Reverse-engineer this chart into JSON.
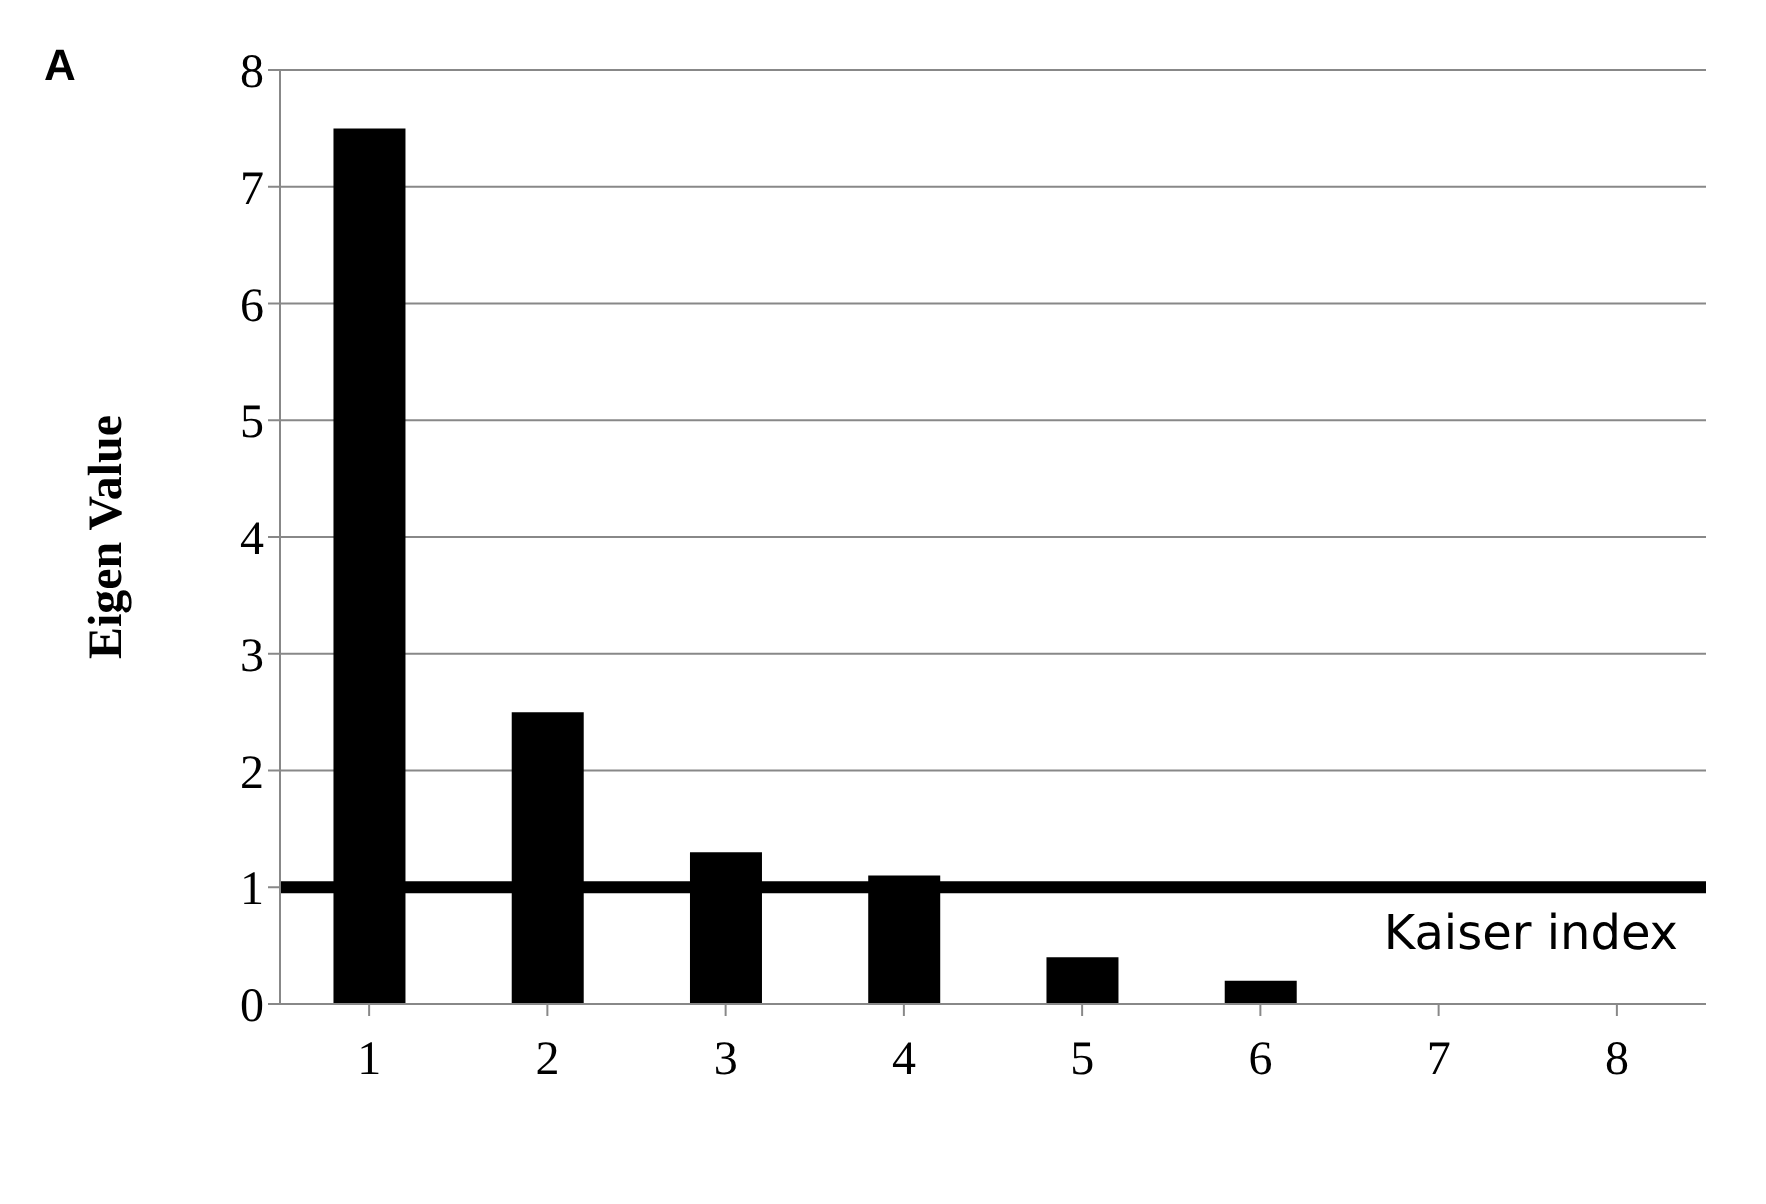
{
  "chart_data": {
    "type": "bar",
    "title": "A",
    "ylabel": "Eigen Value",
    "categories": [
      "1",
      "2",
      "3",
      "4",
      "5",
      "6",
      "7",
      "8"
    ],
    "values": [
      7.5,
      2.5,
      1.3,
      1.1,
      0.4,
      0.2,
      0,
      0
    ],
    "color": "#000000",
    "ylim": [
      0,
      8
    ],
    "yticks": [
      0,
      1,
      2,
      3,
      4,
      5,
      6,
      7,
      8
    ],
    "grid": "y",
    "ref_lines": [
      {
        "axis": "y",
        "value": 1,
        "label": "Kaiser  index",
        "color": "#000000"
      }
    ]
  }
}
